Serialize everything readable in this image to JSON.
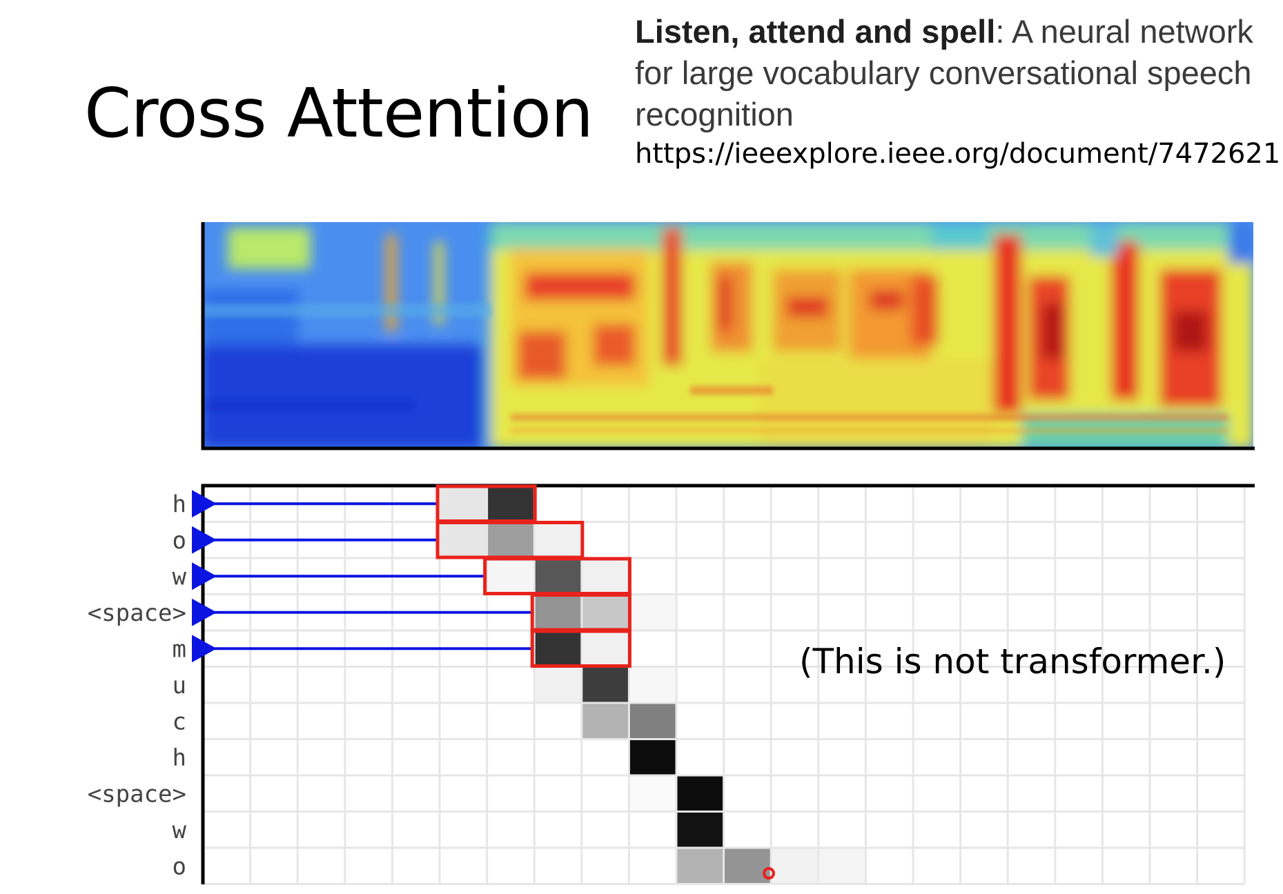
{
  "title": "Cross Attention",
  "reference": {
    "bold": "Listen, attend and spell",
    "rest": ": A neural network for large vocabulary conversational speech recognition",
    "url": "https://ieeexplore.ieee.org/document/7472621"
  },
  "note": "(This is not transformer.)",
  "attention": {
    "output_tokens": [
      "h",
      "o",
      "w",
      "<space>",
      "m",
      "u",
      "c",
      "h",
      "<space>",
      "w",
      "o"
    ],
    "cells": [
      [
        0,
        5,
        0.1
      ],
      [
        0,
        6,
        0.8
      ],
      [
        1,
        5,
        0.1
      ],
      [
        1,
        6,
        0.38
      ],
      [
        1,
        7,
        0.06
      ],
      [
        2,
        6,
        0.04
      ],
      [
        2,
        7,
        0.66
      ],
      [
        2,
        8,
        0.06
      ],
      [
        3,
        7,
        0.42
      ],
      [
        3,
        8,
        0.22
      ],
      [
        3,
        9,
        0.03
      ],
      [
        4,
        7,
        0.8
      ],
      [
        4,
        8,
        0.06
      ],
      [
        5,
        7,
        0.06
      ],
      [
        5,
        8,
        0.76
      ],
      [
        5,
        9,
        0.03
      ],
      [
        6,
        8,
        0.3
      ],
      [
        6,
        9,
        0.5
      ],
      [
        7,
        9,
        0.95
      ],
      [
        8,
        9,
        0.02
      ],
      [
        8,
        10,
        0.95
      ],
      [
        9,
        10,
        0.93
      ],
      [
        10,
        10,
        0.3
      ],
      [
        10,
        11,
        0.42
      ],
      [
        10,
        12,
        0.05
      ],
      [
        10,
        13,
        0.04
      ]
    ],
    "highlight_boxes": [
      {
        "row": 0,
        "col_start": 5,
        "col_end": 6
      },
      {
        "row": 1,
        "col_start": 5,
        "col_end": 7
      },
      {
        "row": 2,
        "col_start": 6,
        "col_end": 8
      },
      {
        "row": 3,
        "col_start": 7,
        "col_end": 8
      },
      {
        "row": 4,
        "col_start": 7,
        "col_end": 8
      }
    ],
    "arrow_rows": [
      0,
      1,
      2,
      3,
      4
    ]
  },
  "colors": {
    "highlight": "#e8221c",
    "arrow": "#0b14e0",
    "cursor": "#e82020"
  }
}
